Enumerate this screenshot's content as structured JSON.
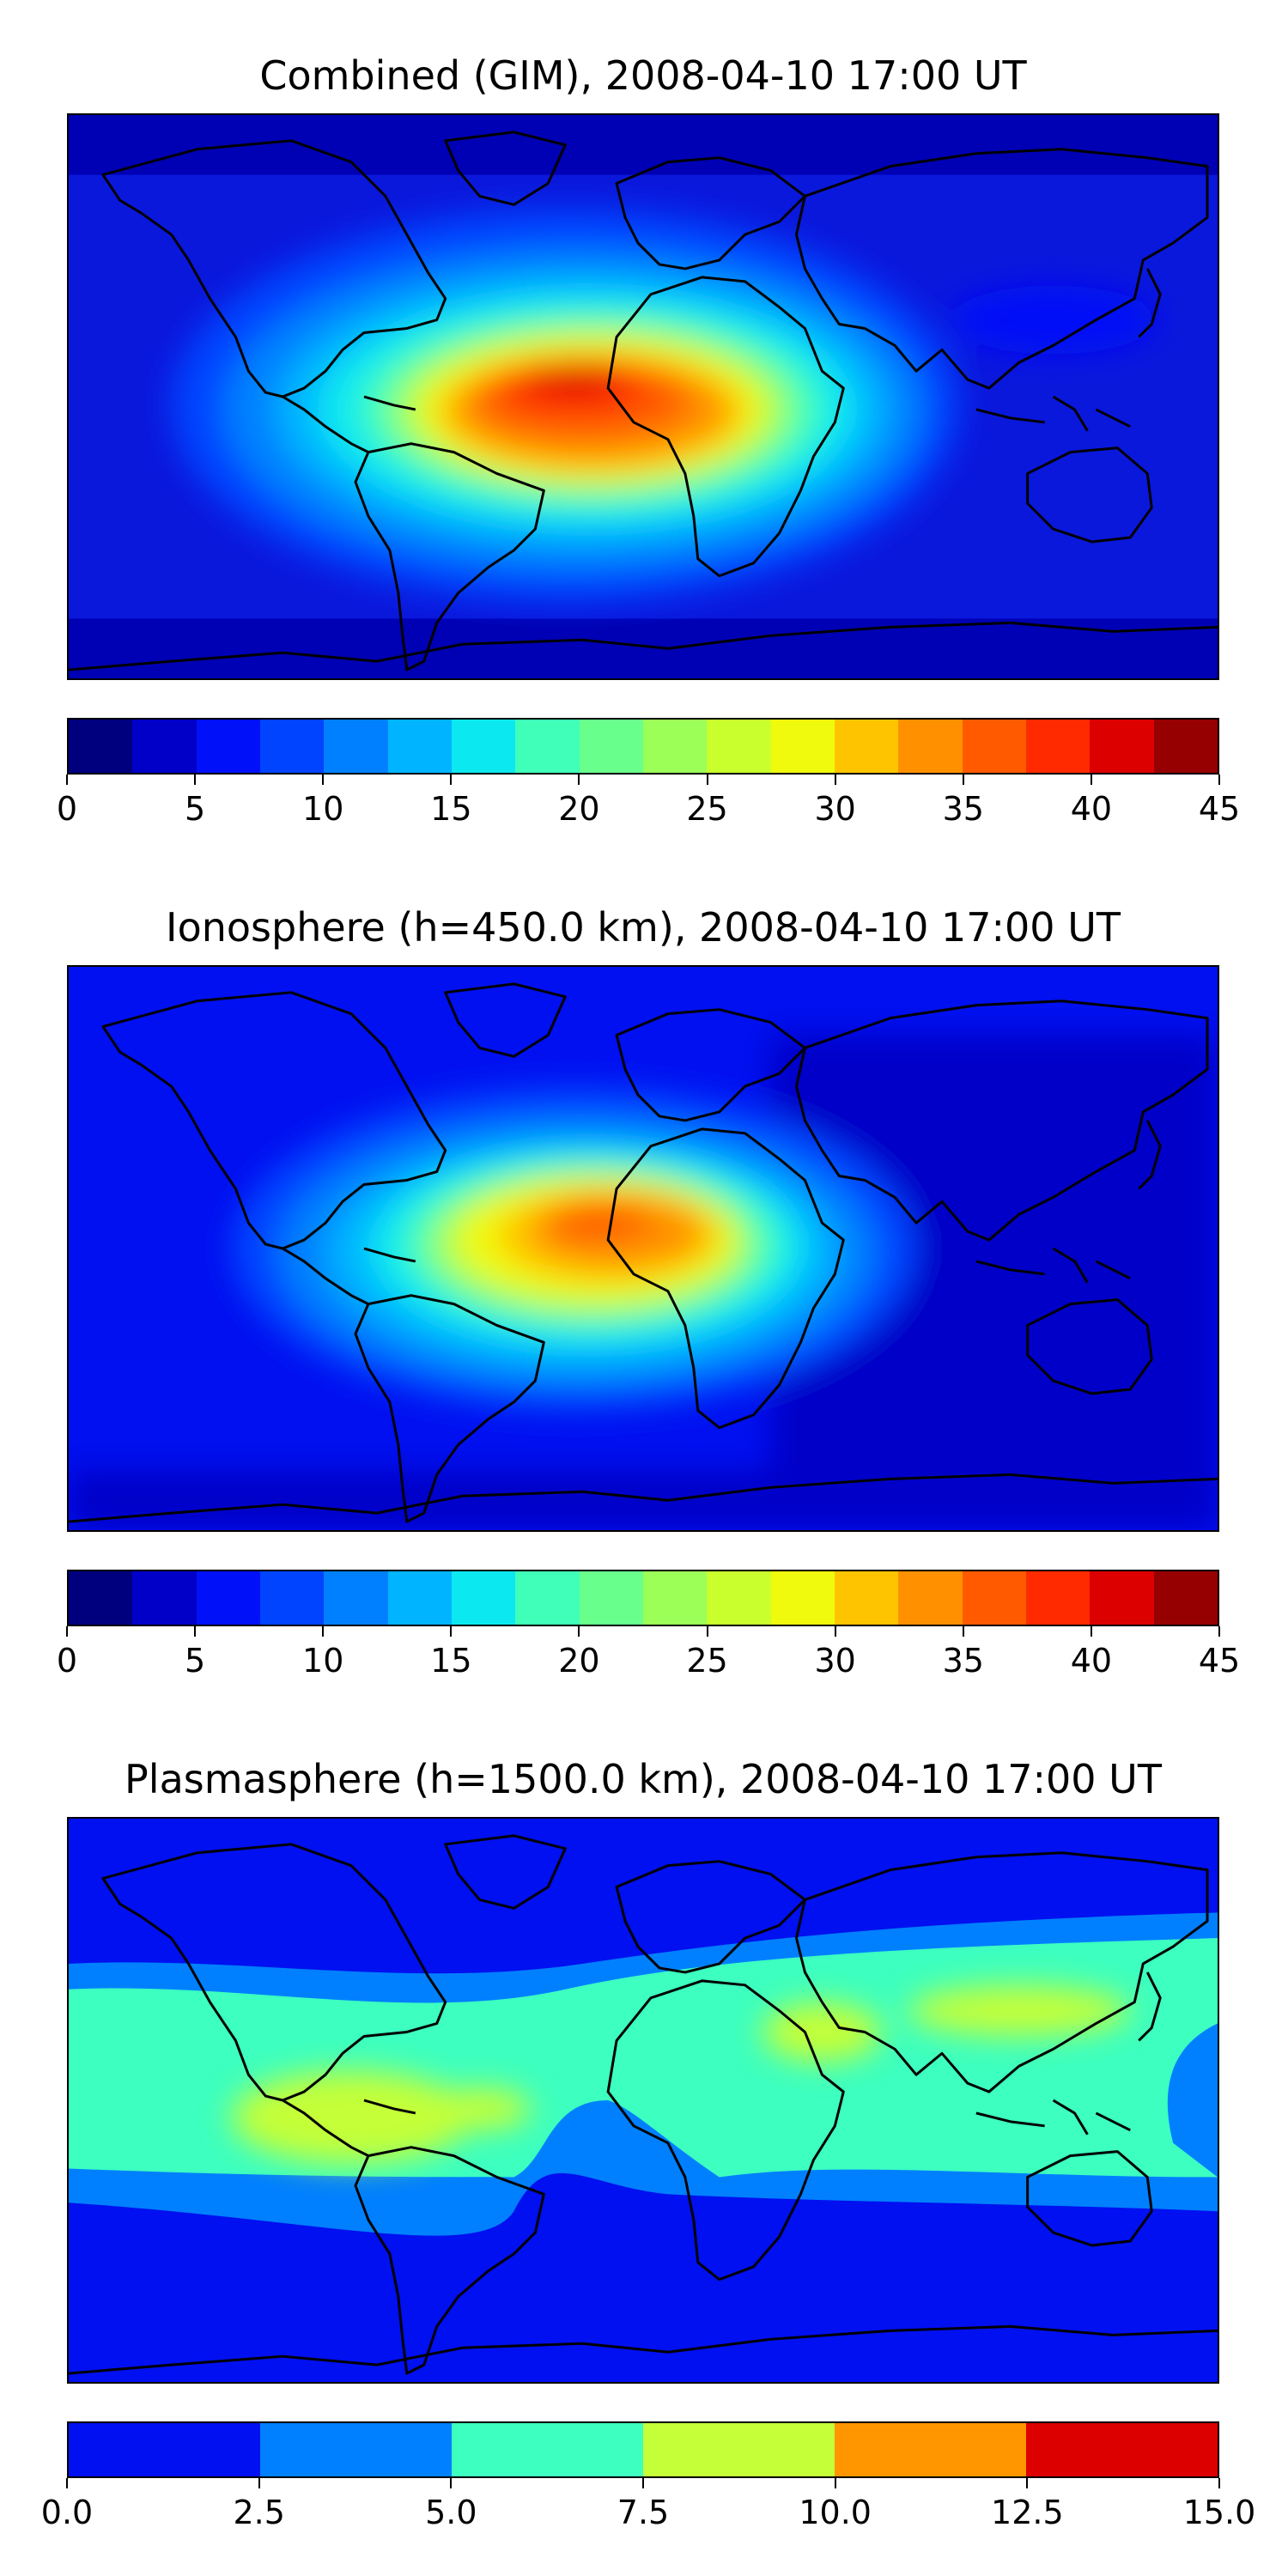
{
  "panels": [
    {
      "title": "Combined (GIM), 2008-04-10 17:00 UT",
      "colorbar": {
        "min": 0,
        "max": 45,
        "colors": [
          "#00007f",
          "#0000c8",
          "#0010f8",
          "#0044ff",
          "#0080ff",
          "#00b4ff",
          "#0ce8f0",
          "#40ffb8",
          "#68ff8c",
          "#9cff58",
          "#c8ff2c",
          "#f0fa0c",
          "#ffc400",
          "#ff9000",
          "#ff5a00",
          "#ff2a00",
          "#dc0000",
          "#960000"
        ],
        "ticks": [
          "0",
          "5",
          "10",
          "15",
          "20",
          "25",
          "30",
          "35",
          "40",
          "45"
        ]
      }
    },
    {
      "title": "Ionosphere  (h=450.0 km), 2008-04-10 17:00 UT",
      "colorbar": {
        "min": 0,
        "max": 45,
        "colors": [
          "#00007f",
          "#0000c8",
          "#0010f8",
          "#0044ff",
          "#0080ff",
          "#00b4ff",
          "#0ce8f0",
          "#40ffb8",
          "#68ff8c",
          "#9cff58",
          "#c8ff2c",
          "#f0fa0c",
          "#ffc400",
          "#ff9000",
          "#ff5a00",
          "#ff2a00",
          "#dc0000",
          "#960000"
        ],
        "ticks": [
          "0",
          "5",
          "10",
          "15",
          "20",
          "25",
          "30",
          "35",
          "40",
          "45"
        ]
      }
    },
    {
      "title": "Plasmasphere (h=1500.0 km), 2008-04-10 17:00 UT",
      "colorbar": {
        "min": 0,
        "max": 15,
        "colors": [
          "#0010f0",
          "#0080ff",
          "#3cffc0",
          "#c4ff38",
          "#ff9600",
          "#dc0000"
        ],
        "ticks": [
          "0.0",
          "2.5",
          "5.0",
          "7.5",
          "10.0",
          "12.5",
          "15.0"
        ]
      }
    }
  ]
}
